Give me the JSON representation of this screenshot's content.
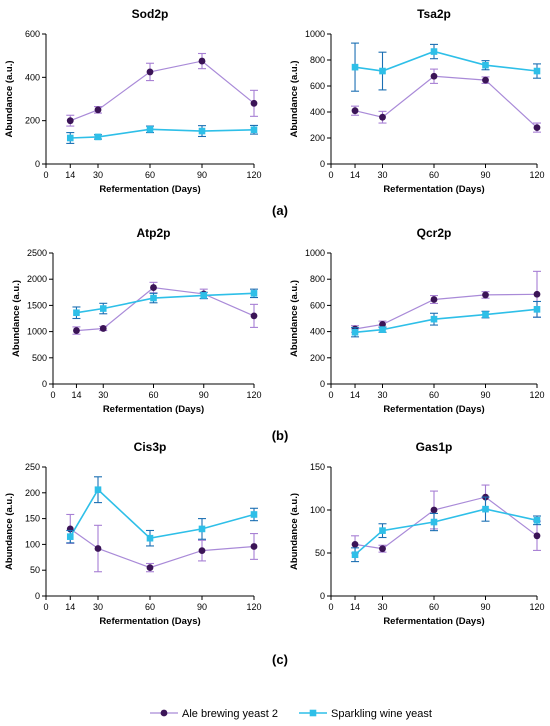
{
  "colors": {
    "ale": "#3b1457",
    "ale_error": "#a77fd4",
    "ale_line": "#a98ad8",
    "sparkling": "#2ebfe8",
    "sparkling_error": "#1b6fb3",
    "axis": "#000000"
  },
  "legend": {
    "placement": "bottom-center",
    "entries": [
      "Ale brewing yeast 2",
      "Sparkling wine yeast"
    ]
  },
  "panel_labels": [
    "(a)",
    "(b)",
    "(c)"
  ],
  "chart_data": [
    {
      "type": "line",
      "title": "Sod2p",
      "xlabel": "Refermentation (Days)",
      "ylabel": "Abundance (a.u.)",
      "xticks": [
        0,
        14,
        30,
        60,
        90,
        120
      ],
      "xlim": [
        0,
        120
      ],
      "ylim": [
        0,
        600
      ],
      "yticks": [
        0,
        200,
        400,
        600
      ],
      "x": [
        14,
        30,
        60,
        90,
        120
      ],
      "series": [
        {
          "name": "Ale brewing yeast 2",
          "values": [
            200,
            250,
            425,
            475,
            280
          ],
          "errors": [
            25,
            15,
            40,
            35,
            60
          ]
        },
        {
          "name": "Sparkling wine yeast",
          "values": [
            120,
            125,
            160,
            152,
            158
          ],
          "errors": [
            25,
            10,
            15,
            25,
            20
          ]
        }
      ]
    },
    {
      "type": "line",
      "title": "Tsa2p",
      "xlabel": "Refermentation (Days)",
      "ylabel": "Abundance (a.u.)",
      "xticks": [
        0,
        14,
        30,
        60,
        90,
        120
      ],
      "xlim": [
        0,
        120
      ],
      "ylim": [
        0,
        1000
      ],
      "yticks": [
        0,
        200,
        400,
        600,
        800,
        1000
      ],
      "x": [
        14,
        30,
        60,
        90,
        120
      ],
      "series": [
        {
          "name": "Ale brewing yeast 2",
          "values": [
            410,
            360,
            675,
            645,
            280
          ],
          "errors": [
            35,
            45,
            55,
            25,
            35
          ]
        },
        {
          "name": "Sparkling wine yeast",
          "values": [
            745,
            715,
            865,
            760,
            715
          ],
          "errors": [
            185,
            145,
            55,
            35,
            55
          ]
        }
      ]
    },
    {
      "type": "line",
      "title": "Atp2p",
      "xlabel": "Refermentation (Days)",
      "ylabel": "Abundance (a.u.)",
      "xticks": [
        0,
        14,
        30,
        60,
        90,
        120
      ],
      "xlim": [
        0,
        120
      ],
      "ylim": [
        0,
        2500
      ],
      "yticks": [
        0,
        500,
        1000,
        1500,
        2000,
        2500
      ],
      "x": [
        14,
        30,
        60,
        90,
        120
      ],
      "series": [
        {
          "name": "Ale brewing yeast 2",
          "values": [
            1020,
            1060,
            1840,
            1720,
            1300
          ],
          "errors": [
            70,
            40,
            100,
            90,
            220
          ]
        },
        {
          "name": "Sparkling wine yeast",
          "values": [
            1360,
            1440,
            1640,
            1690,
            1730
          ],
          "errors": [
            110,
            100,
            90,
            60,
            80
          ]
        }
      ]
    },
    {
      "type": "line",
      "title": "Qcr2p",
      "xlabel": "Refermentation (Days)",
      "ylabel": "Abundance (a.u.)",
      "xticks": [
        0,
        14,
        30,
        60,
        90,
        120
      ],
      "xlim": [
        0,
        120
      ],
      "ylim": [
        0,
        1000
      ],
      "yticks": [
        0,
        200,
        400,
        600,
        800,
        1000
      ],
      "x": [
        14,
        30,
        60,
        90,
        120
      ],
      "series": [
        {
          "name": "Ale brewing yeast 2",
          "values": [
            420,
            455,
            645,
            680,
            685
          ],
          "errors": [
            25,
            25,
            30,
            25,
            175
          ]
        },
        {
          "name": "Sparkling wine yeast",
          "values": [
            395,
            415,
            495,
            530,
            570
          ],
          "errors": [
            35,
            20,
            45,
            25,
            60
          ]
        }
      ]
    },
    {
      "type": "line",
      "title": "Cis3p",
      "xlabel": "Refermentation (Days)",
      "ylabel": "Abundance (a.u.)",
      "xticks": [
        0,
        14,
        30,
        60,
        90,
        120
      ],
      "xlim": [
        0,
        120
      ],
      "ylim": [
        0,
        250
      ],
      "yticks": [
        0,
        50,
        100,
        150,
        200,
        250
      ],
      "x": [
        14,
        30,
        60,
        90,
        120
      ],
      "series": [
        {
          "name": "Ale brewing yeast 2",
          "values": [
            130,
            92,
            55,
            88,
            96
          ],
          "errors": [
            28,
            45,
            8,
            20,
            25
          ]
        },
        {
          "name": "Sparkling wine yeast",
          "values": [
            115,
            206,
            112,
            130,
            158
          ],
          "errors": [
            12,
            25,
            15,
            20,
            12
          ]
        }
      ]
    },
    {
      "type": "line",
      "title": "Gas1p",
      "xlabel": "Refermentation (Days)",
      "ylabel": "Abundance (a.u.)",
      "xticks": [
        0,
        14,
        30,
        60,
        90,
        120
      ],
      "xlim": [
        0,
        120
      ],
      "ylim": [
        0,
        150
      ],
      "yticks": [
        0,
        50,
        100,
        150
      ],
      "x": [
        14,
        30,
        60,
        90,
        120
      ],
      "series": [
        {
          "name": "Ale brewing yeast 2",
          "values": [
            60,
            55,
            100,
            115,
            70
          ],
          "errors": [
            10,
            4,
            22,
            14,
            17
          ]
        },
        {
          "name": "Sparkling wine yeast",
          "values": [
            48,
            76,
            86,
            101,
            88
          ],
          "errors": [
            8,
            8,
            10,
            14,
            5
          ]
        }
      ]
    }
  ]
}
